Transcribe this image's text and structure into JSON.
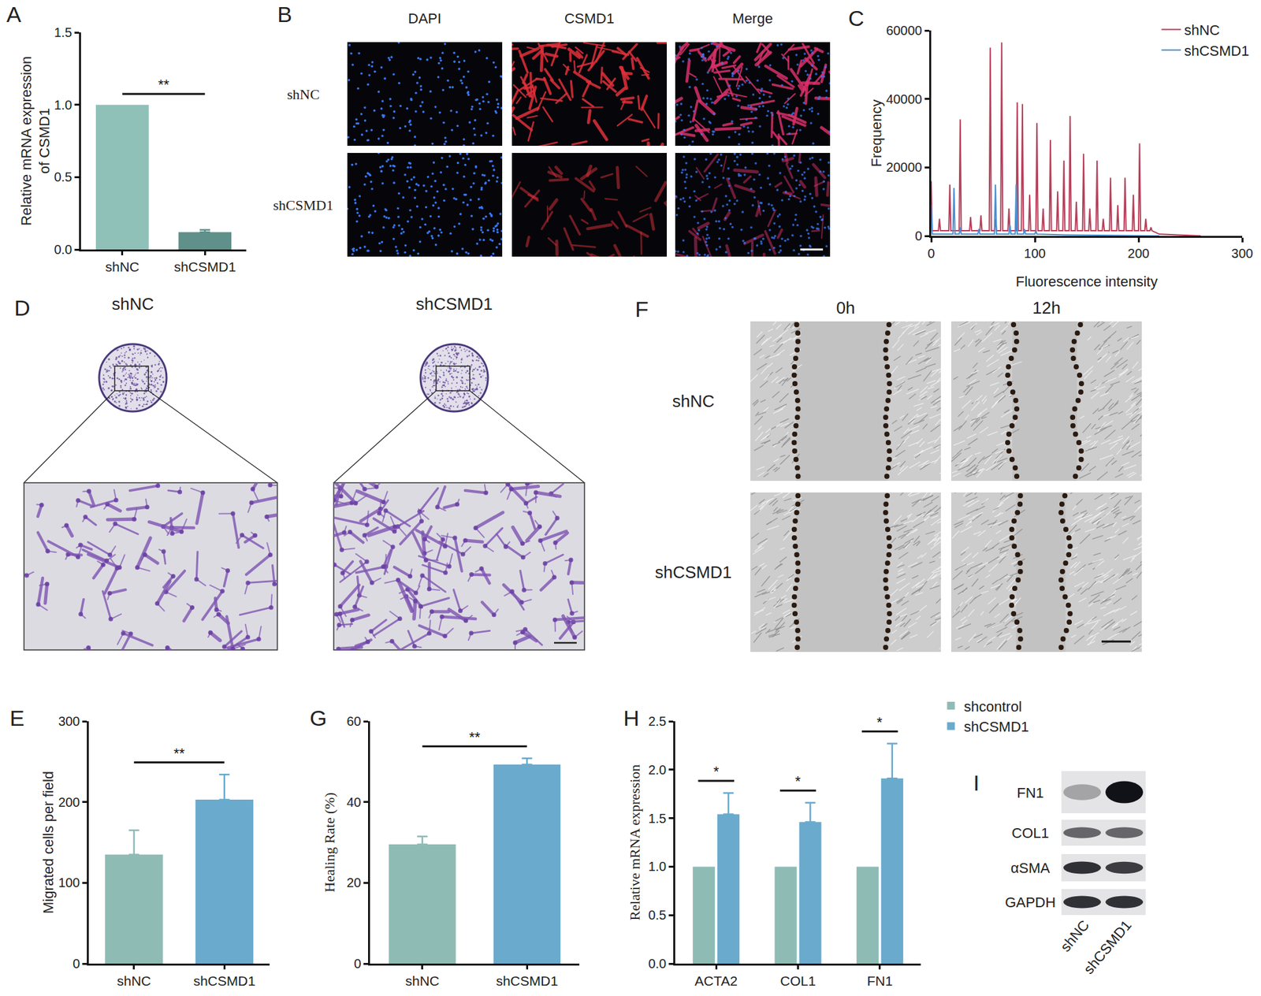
{
  "chart_data": [
    {
      "panel_label": "A",
      "type": "bar",
      "categories": [
        "shNC",
        "shCSMD1"
      ],
      "values": [
        1.0,
        0.12
      ],
      "errors": [
        0,
        0.015
      ],
      "colors": [
        "#8fc1b9",
        "#5f908a"
      ],
      "y_label": "Relative mRNA expression\nof CSMD1",
      "ylim": [
        0,
        1.5
      ],
      "yticks": [
        {
          "value": 0,
          "label": "0.0"
        },
        0.5,
        {
          "value": 1,
          "label": "1.0"
        },
        1.5
      ],
      "significance": [
        {
          "between": [
            0,
            1
          ],
          "label": "**"
        }
      ]
    },
    {
      "panel_label": "C",
      "type": "line",
      "x_label": "Fluorescence intensity",
      "y_label": "Frequency",
      "xlim": [
        0,
        300
      ],
      "xticks": [
        0,
        100,
        200,
        300
      ],
      "ylim": [
        0,
        60000
      ],
      "yticks": [
        0,
        20000,
        40000,
        60000
      ],
      "legend": "top right",
      "series": [
        {
          "name": "shNC",
          "color": "#b5405a",
          "x": [
            0,
            1,
            2,
            7,
            8,
            9,
            17,
            18,
            19,
            27,
            28,
            29,
            37,
            38,
            39,
            47,
            48,
            49,
            56,
            57,
            58,
            61,
            62,
            63,
            67,
            68,
            69,
            74,
            75,
            76,
            82,
            83,
            84,
            87,
            88,
            89,
            94,
            95,
            96,
            101,
            102,
            103,
            107,
            108,
            109,
            114,
            115,
            116,
            121,
            122,
            123,
            127,
            128,
            129,
            133,
            134,
            135,
            139,
            140,
            141,
            146,
            147,
            148,
            152,
            153,
            154,
            159,
            160,
            161,
            165,
            166,
            167,
            172,
            173,
            174,
            179,
            180,
            181,
            186,
            187,
            188,
            194,
            195,
            196,
            200,
            201,
            202,
            206,
            207,
            208,
            211,
            212,
            213,
            220,
            260
          ],
          "values": [
            16000,
            1500,
            1500,
            1500,
            5000,
            1500,
            1500,
            15000,
            1500,
            1500,
            34000,
            1500,
            1500,
            5500,
            1500,
            1500,
            6000,
            1500,
            1500,
            55000,
            1500,
            1500,
            5000,
            1500,
            1500,
            56500,
            1500,
            1500,
            8000,
            1500,
            1500,
            39000,
            1500,
            1500,
            38500,
            1500,
            1500,
            12000,
            1500,
            1500,
            33000,
            1500,
            1500,
            8000,
            1500,
            1500,
            28000,
            1500,
            1500,
            13000,
            1500,
            1500,
            22000,
            1500,
            1500,
            35000,
            1500,
            1500,
            10000,
            1500,
            1500,
            24000,
            1500,
            1500,
            8000,
            1500,
            1500,
            22000,
            1500,
            1500,
            5000,
            1500,
            1500,
            17000,
            1500,
            1500,
            9000,
            1500,
            1500,
            17000,
            1500,
            1500,
            12000,
            1500,
            1500,
            27000,
            1500,
            1500,
            5000,
            1500,
            1500,
            2500,
            1500,
            500,
            0
          ]
        },
        {
          "name": "shCSMD1",
          "color": "#4a8fd0",
          "x": [
            0,
            1,
            2,
            21,
            22,
            23,
            27,
            28,
            29,
            45,
            46,
            47,
            61,
            62,
            63,
            75,
            76,
            77,
            81,
            82,
            83,
            89,
            90,
            91,
            100,
            101,
            102,
            130,
            220
          ],
          "values": [
            9000,
            500,
            500,
            500,
            14000,
            500,
            500,
            2500,
            500,
            500,
            2000,
            500,
            500,
            15000,
            500,
            500,
            3000,
            500,
            500,
            15000,
            500,
            500,
            2000,
            500,
            500,
            1500,
            500,
            300,
            0
          ]
        }
      ]
    },
    {
      "panel_label": "E",
      "type": "bar",
      "categories": [
        "shNC",
        "shCSMD1"
      ],
      "values": [
        135,
        203
      ],
      "errors": [
        30,
        31
      ],
      "colors": [
        "#8fbbb5",
        "#6aaacd"
      ],
      "y_label": "Migrated cells per field",
      "ylim": [
        0,
        300
      ],
      "yticks": [
        0,
        100,
        200,
        300
      ],
      "significance": [
        {
          "between": [
            0,
            1
          ],
          "label": "**"
        }
      ]
    },
    {
      "panel_label": "G",
      "type": "bar",
      "categories": [
        "shNC",
        "shCSMD1"
      ],
      "values": [
        29.5,
        49.3
      ],
      "errors": [
        2,
        1.5
      ],
      "colors": [
        "#8fbbb5",
        "#6aaacd"
      ],
      "y_label": "Healing Rate (%)",
      "ylim": [
        0,
        60
      ],
      "yticks": [
        0,
        20,
        40,
        60
      ],
      "significance": [
        {
          "between": [
            0,
            1
          ],
          "label": "**"
        }
      ]
    },
    {
      "panel_label": "H",
      "type": "bar",
      "categories": [
        "ACTA2",
        "COL1",
        "FN1"
      ],
      "series": [
        {
          "name": "shcontrol",
          "color": "#8fbbb5",
          "values": [
            1,
            1,
            1
          ],
          "errors": [
            0,
            0,
            0
          ]
        },
        {
          "name": "shCSMD1",
          "color": "#6aaacd",
          "values": [
            1.54,
            1.46,
            1.91
          ],
          "errors": [
            0.22,
            0.2,
            0.36
          ]
        }
      ],
      "y_label": "Relative mRNA expression",
      "legend": "right",
      "ylim": [
        0,
        2.5
      ],
      "yticks": [
        {
          "value": 0,
          "label": "0.0"
        },
        0.5,
        {
          "value": 1,
          "label": "1.0"
        },
        1.5,
        {
          "value": 2,
          "label": "2.0"
        },
        2.5
      ],
      "significance": [
        {
          "category": 0,
          "label": "*"
        },
        {
          "category": 1,
          "label": "*"
        },
        {
          "category": 2,
          "label": "*"
        }
      ]
    }
  ],
  "image_panels": {
    "B": {
      "panel_label": "B",
      "columns": [
        "DAPI",
        "CSMD1",
        "Merge"
      ],
      "rows": [
        "shNC",
        "shCSMD1"
      ]
    },
    "D": {
      "panel_label": "D",
      "groups": [
        "shNC",
        "shCSMD1"
      ]
    },
    "F": {
      "panel_label": "F",
      "columns": [
        "0h",
        "12h"
      ],
      "rows": [
        "shNC",
        "shCSMD1"
      ]
    },
    "I": {
      "panel_label": "I",
      "rows": [
        "FN1",
        "COL1",
        "αSMA",
        "GAPDH"
      ],
      "lanes": [
        "shNC",
        "shCSMD1"
      ],
      "band_intensity": [
        [
          0.3,
          1.0
        ],
        [
          0.6,
          0.6
        ],
        [
          0.85,
          0.8
        ],
        [
          0.85,
          0.85
        ]
      ]
    }
  }
}
